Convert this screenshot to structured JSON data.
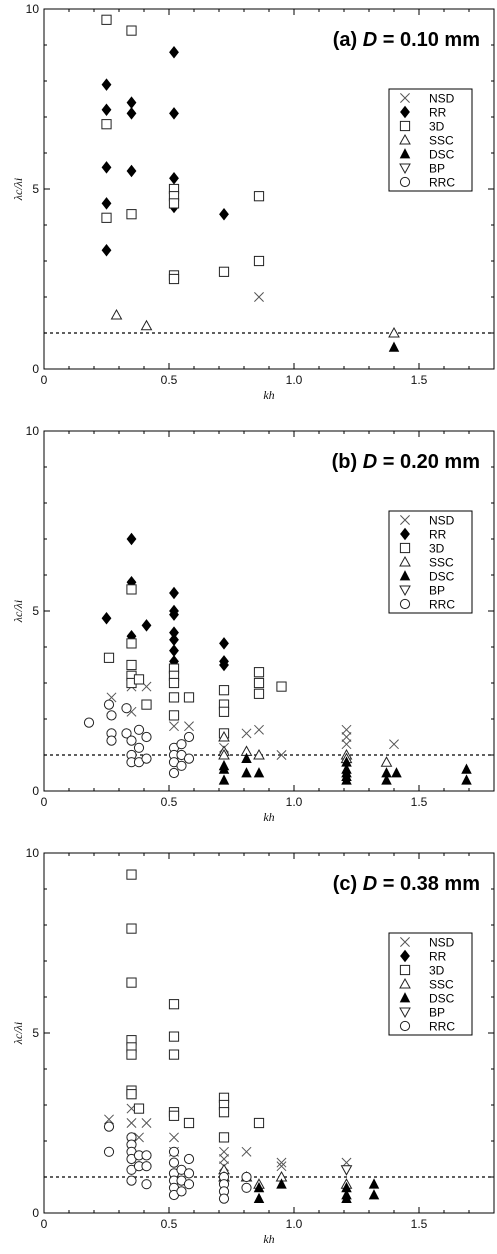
{
  "chart_data": [
    {
      "type": "scatter",
      "title": "(a) D = 0.10 mm",
      "title_parts": {
        "prefix": "(a) ",
        "var": "D",
        "suffix": " = 0.10 mm"
      },
      "xlabel": "kh",
      "ylabel": "λc/λi",
      "xlim": [
        0,
        1.8
      ],
      "ylim": [
        0,
        10
      ],
      "xticks": [
        "0",
        "0.5",
        "1.0",
        "1.5"
      ],
      "yticks": [
        "0",
        "5",
        "10"
      ],
      "reference_line": 1,
      "grid": false,
      "legend_position": "right",
      "series": [
        {
          "name": "NSD",
          "points": [
            [
              0.86,
              2.0
            ]
          ]
        },
        {
          "name": "RR",
          "points": [
            [
              0.25,
              7.9
            ],
            [
              0.25,
              7.2
            ],
            [
              0.25,
              5.6
            ],
            [
              0.25,
              4.6
            ],
            [
              0.25,
              3.3
            ],
            [
              0.35,
              7.4
            ],
            [
              0.35,
              7.1
            ],
            [
              0.35,
              5.5
            ],
            [
              0.52,
              8.8
            ],
            [
              0.52,
              7.1
            ],
            [
              0.52,
              5.3
            ],
            [
              0.52,
              4.5
            ],
            [
              0.72,
              4.3
            ]
          ]
        },
        {
          "name": "3D",
          "points": [
            [
              0.25,
              9.7
            ],
            [
              0.25,
              6.8
            ],
            [
              0.25,
              4.2
            ],
            [
              0.35,
              9.4
            ],
            [
              0.35,
              4.3
            ],
            [
              0.52,
              5.0
            ],
            [
              0.52,
              4.8
            ],
            [
              0.52,
              4.6
            ],
            [
              0.52,
              2.6
            ],
            [
              0.52,
              2.5
            ],
            [
              0.72,
              2.7
            ],
            [
              0.86,
              4.8
            ],
            [
              0.86,
              3.0
            ]
          ]
        },
        {
          "name": "SSC",
          "points": [
            [
              0.29,
              1.5
            ],
            [
              0.41,
              1.2
            ],
            [
              1.4,
              1.0
            ]
          ]
        },
        {
          "name": "DSC",
          "points": [
            [
              1.4,
              0.6
            ]
          ]
        },
        {
          "name": "BP",
          "points": []
        },
        {
          "name": "RRC",
          "points": []
        }
      ]
    },
    {
      "type": "scatter",
      "title": "(b) D = 0.20 mm",
      "title_parts": {
        "prefix": "(b) ",
        "var": "D",
        "suffix": " = 0.20 mm"
      },
      "xlabel": "kh",
      "ylabel": "λc/λi",
      "xlim": [
        0,
        1.8
      ],
      "ylim": [
        0,
        10
      ],
      "xticks": [
        "0",
        "0.5",
        "1.0",
        "1.5"
      ],
      "yticks": [
        "0",
        "5",
        "10"
      ],
      "reference_line": 1,
      "grid": false,
      "legend_position": "right",
      "series": [
        {
          "name": "NSD",
          "points": [
            [
              0.27,
              2.6
            ],
            [
              0.35,
              2.9
            ],
            [
              0.35,
              2.2
            ],
            [
              0.41,
              2.9
            ],
            [
              0.52,
              1.8
            ],
            [
              0.58,
              1.8
            ],
            [
              0.72,
              1.2
            ],
            [
              0.81,
              1.6
            ],
            [
              0.86,
              1.7
            ],
            [
              0.95,
              1.0
            ],
            [
              1.21,
              1.7
            ],
            [
              1.21,
              1.5
            ],
            [
              1.21,
              1.3
            ],
            [
              1.4,
              1.3
            ]
          ]
        },
        {
          "name": "RR",
          "points": [
            [
              0.25,
              4.8
            ],
            [
              0.35,
              7.0
            ],
            [
              0.35,
              5.8
            ],
            [
              0.35,
              4.3
            ],
            [
              0.41,
              4.6
            ],
            [
              0.52,
              5.5
            ],
            [
              0.52,
              5.0
            ],
            [
              0.52,
              4.9
            ],
            [
              0.52,
              4.4
            ],
            [
              0.52,
              4.2
            ],
            [
              0.52,
              3.9
            ],
            [
              0.52,
              3.6
            ],
            [
              0.52,
              3.5
            ],
            [
              0.72,
              4.1
            ],
            [
              0.72,
              3.6
            ],
            [
              0.72,
              3.5
            ]
          ]
        },
        {
          "name": "3D",
          "points": [
            [
              0.26,
              3.7
            ],
            [
              0.35,
              5.6
            ],
            [
              0.35,
              4.1
            ],
            [
              0.35,
              3.5
            ],
            [
              0.35,
              3.2
            ],
            [
              0.35,
              3.0
            ],
            [
              0.38,
              3.1
            ],
            [
              0.41,
              2.4
            ],
            [
              0.52,
              3.4
            ],
            [
              0.52,
              3.2
            ],
            [
              0.52,
              3.0
            ],
            [
              0.52,
              2.6
            ],
            [
              0.52,
              2.1
            ],
            [
              0.58,
              2.6
            ],
            [
              0.72,
              2.8
            ],
            [
              0.72,
              2.4
            ],
            [
              0.72,
              2.2
            ],
            [
              0.72,
              1.6
            ],
            [
              0.86,
              3.3
            ],
            [
              0.86,
              3.0
            ],
            [
              0.86,
              2.7
            ],
            [
              0.95,
              2.9
            ]
          ]
        },
        {
          "name": "SSC",
          "points": [
            [
              0.72,
              1.5
            ],
            [
              0.72,
              1.1
            ],
            [
              0.72,
              1.0
            ],
            [
              0.81,
              1.1
            ],
            [
              0.86,
              1.0
            ],
            [
              1.21,
              1.0
            ],
            [
              1.21,
              0.9
            ],
            [
              1.37,
              0.8
            ]
          ]
        },
        {
          "name": "DSC",
          "points": [
            [
              0.72,
              0.7
            ],
            [
              0.72,
              0.6
            ],
            [
              0.72,
              0.3
            ],
            [
              0.81,
              0.9
            ],
            [
              0.81,
              0.5
            ],
            [
              0.86,
              0.5
            ],
            [
              1.21,
              0.8
            ],
            [
              1.21,
              0.6
            ],
            [
              1.21,
              0.5
            ],
            [
              1.21,
              0.4
            ],
            [
              1.21,
              0.3
            ],
            [
              1.37,
              0.5
            ],
            [
              1.37,
              0.3
            ],
            [
              1.41,
              0.5
            ],
            [
              1.69,
              0.6
            ],
            [
              1.69,
              0.3
            ]
          ]
        },
        {
          "name": "BP",
          "points": []
        },
        {
          "name": "RRC",
          "points": [
            [
              0.18,
              1.9
            ],
            [
              0.26,
              2.4
            ],
            [
              0.27,
              2.1
            ],
            [
              0.27,
              1.6
            ],
            [
              0.27,
              1.4
            ],
            [
              0.33,
              2.3
            ],
            [
              0.33,
              1.6
            ],
            [
              0.35,
              1.4
            ],
            [
              0.35,
              1.0
            ],
            [
              0.35,
              0.8
            ],
            [
              0.38,
              1.7
            ],
            [
              0.38,
              1.2
            ],
            [
              0.38,
              0.8
            ],
            [
              0.41,
              1.5
            ],
            [
              0.41,
              0.9
            ],
            [
              0.52,
              1.2
            ],
            [
              0.52,
              1.0
            ],
            [
              0.52,
              0.8
            ],
            [
              0.52,
              0.5
            ],
            [
              0.55,
              1.3
            ],
            [
              0.55,
              1.0
            ],
            [
              0.55,
              0.7
            ],
            [
              0.58,
              1.5
            ],
            [
              0.58,
              0.9
            ]
          ]
        }
      ]
    },
    {
      "type": "scatter",
      "title": "(c) D = 0.38 mm",
      "title_parts": {
        "prefix": "(c) ",
        "var": "D",
        "suffix": " = 0.38 mm"
      },
      "xlabel": "kh",
      "ylabel": "λc/λi",
      "xlim": [
        0,
        1.8
      ],
      "ylim": [
        0,
        10
      ],
      "xticks": [
        "0",
        "0.5",
        "1.0",
        "1.5"
      ],
      "yticks": [
        "0",
        "5",
        "10"
      ],
      "reference_line": 1,
      "grid": false,
      "legend_position": "right",
      "series": [
        {
          "name": "NSD",
          "points": [
            [
              0.26,
              2.6
            ],
            [
              0.35,
              2.9
            ],
            [
              0.35,
              2.5
            ],
            [
              0.38,
              2.1
            ],
            [
              0.41,
              2.5
            ],
            [
              0.52,
              2.1
            ],
            [
              0.52,
              1.7
            ],
            [
              0.72,
              1.7
            ],
            [
              0.72,
              1.5
            ],
            [
              0.72,
              1.3
            ],
            [
              0.81,
              1.7
            ],
            [
              0.95,
              1.4
            ],
            [
              0.95,
              1.3
            ],
            [
              1.21,
              1.4
            ]
          ]
        },
        {
          "name": "RR",
          "points": []
        },
        {
          "name": "3D",
          "points": [
            [
              0.35,
              9.4
            ],
            [
              0.35,
              7.9
            ],
            [
              0.35,
              6.4
            ],
            [
              0.35,
              4.8
            ],
            [
              0.35,
              4.6
            ],
            [
              0.35,
              4.4
            ],
            [
              0.35,
              3.4
            ],
            [
              0.35,
              3.3
            ],
            [
              0.38,
              2.9
            ],
            [
              0.52,
              5.8
            ],
            [
              0.52,
              4.9
            ],
            [
              0.52,
              4.4
            ],
            [
              0.52,
              2.8
            ],
            [
              0.52,
              2.7
            ],
            [
              0.58,
              2.5
            ],
            [
              0.72,
              3.2
            ],
            [
              0.72,
              3.0
            ],
            [
              0.72,
              2.8
            ],
            [
              0.72,
              2.1
            ],
            [
              0.86,
              2.5
            ]
          ]
        },
        {
          "name": "SSC",
          "points": [
            [
              0.72,
              1.2
            ],
            [
              0.72,
              1.0
            ],
            [
              0.81,
              1.0
            ],
            [
              0.86,
              0.8
            ],
            [
              0.95,
              1.0
            ],
            [
              1.21,
              0.8
            ]
          ]
        },
        {
          "name": "DSC",
          "points": [
            [
              0.86,
              0.7
            ],
            [
              0.86,
              0.4
            ],
            [
              0.95,
              0.8
            ],
            [
              1.21,
              0.7
            ],
            [
              1.21,
              0.5
            ],
            [
              1.21,
              0.4
            ],
            [
              1.32,
              0.8
            ],
            [
              1.32,
              0.5
            ]
          ]
        },
        {
          "name": "BP",
          "points": [
            [
              1.21,
              1.2
            ]
          ]
        },
        {
          "name": "RRC",
          "points": [
            [
              0.26,
              2.4
            ],
            [
              0.26,
              1.7
            ],
            [
              0.35,
              2.1
            ],
            [
              0.35,
              1.9
            ],
            [
              0.35,
              1.7
            ],
            [
              0.35,
              1.5
            ],
            [
              0.35,
              1.2
            ],
            [
              0.35,
              0.9
            ],
            [
              0.38,
              1.6
            ],
            [
              0.38,
              1.3
            ],
            [
              0.41,
              1.6
            ],
            [
              0.41,
              1.3
            ],
            [
              0.41,
              0.8
            ],
            [
              0.52,
              1.7
            ],
            [
              0.52,
              1.4
            ],
            [
              0.52,
              1.1
            ],
            [
              0.52,
              0.9
            ],
            [
              0.52,
              0.7
            ],
            [
              0.52,
              0.5
            ],
            [
              0.55,
              1.2
            ],
            [
              0.55,
              0.9
            ],
            [
              0.55,
              0.6
            ],
            [
              0.58,
              1.5
            ],
            [
              0.58,
              1.1
            ],
            [
              0.58,
              0.8
            ],
            [
              0.72,
              1.0
            ],
            [
              0.72,
              0.8
            ],
            [
              0.72,
              0.6
            ],
            [
              0.72,
              0.4
            ],
            [
              0.81,
              1.0
            ],
            [
              0.81,
              0.7
            ]
          ]
        }
      ]
    }
  ]
}
